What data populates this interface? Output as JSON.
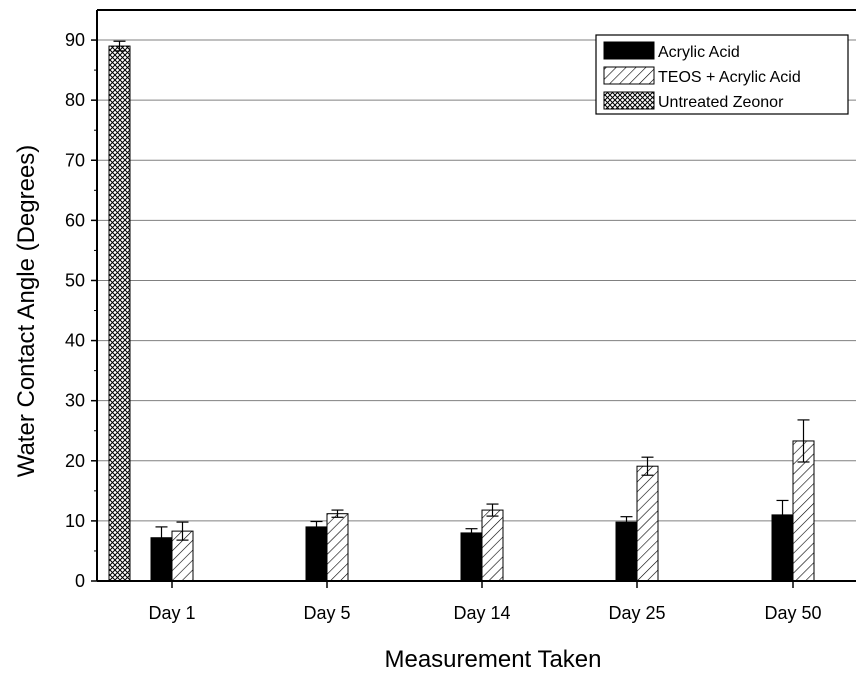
{
  "chart_data": {
    "type": "bar",
    "title": "",
    "xlabel": "Measurement Taken",
    "ylabel": "Water Contact Angle (Degrees)",
    "ylim": [
      0,
      95
    ],
    "yticks": [
      "0",
      "10",
      "20",
      "30",
      "40",
      "50",
      "60",
      "70",
      "80",
      "90"
    ],
    "grid": "horizontal",
    "legend_position": "top-right",
    "categories": [
      "Day 1",
      "Day 5",
      "Day 14",
      "Day 25",
      "Day 50"
    ],
    "series": [
      {
        "name": "Acrylic Acid",
        "pattern": "solid",
        "color": "#000000",
        "values": [
          7.2,
          9.0,
          8.0,
          9.8,
          11.0
        ],
        "errors": [
          1.8,
          0.9,
          0.7,
          0.9,
          2.4
        ]
      },
      {
        "name": "TEOS + Acrylic Acid",
        "pattern": "diagonal-hatch",
        "color": "#000000",
        "values": [
          8.3,
          11.2,
          11.8,
          19.1,
          23.3
        ],
        "errors": [
          1.5,
          0.6,
          1.0,
          1.5,
          3.5
        ]
      },
      {
        "name": "Untreated Zeonor",
        "pattern": "crosshatch",
        "color": "#000000",
        "values": [
          89.0,
          null,
          null,
          null,
          null
        ],
        "errors": [
          0.8,
          null,
          null,
          null,
          null
        ]
      }
    ]
  }
}
